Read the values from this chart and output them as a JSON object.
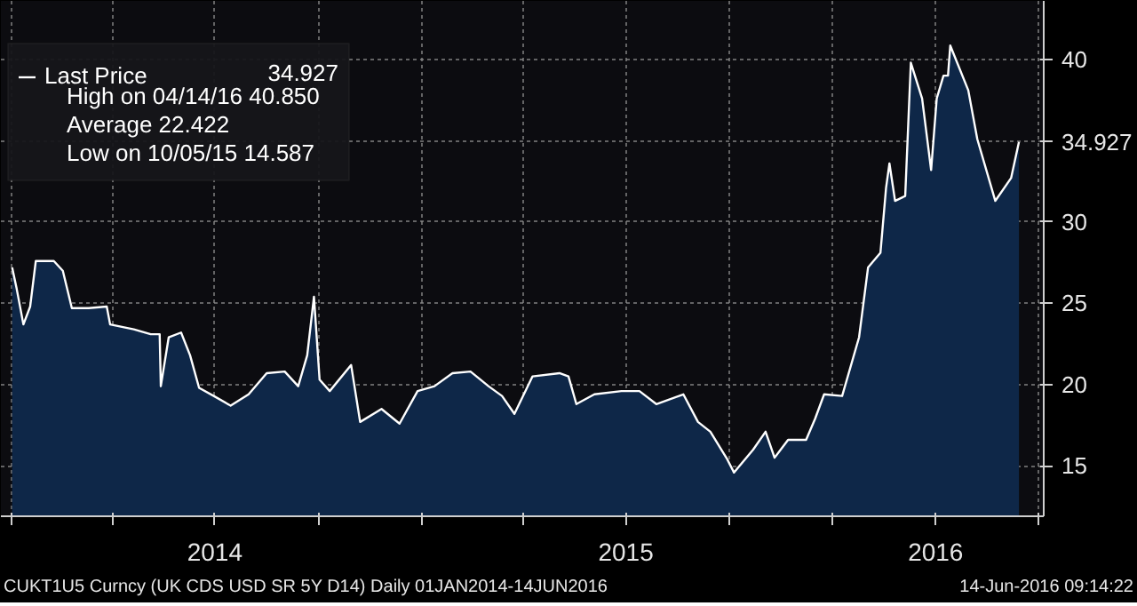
{
  "chart_data": {
    "type": "area",
    "x": [
      "2014-01-02",
      "2014-01-06",
      "2014-01-12",
      "2014-01-18",
      "2014-01-23",
      "2014-02-08",
      "2014-02-16",
      "2014-02-24",
      "2014-03-11",
      "2014-03-27",
      "2014-03-30",
      "2014-04-20",
      "2014-05-05",
      "2014-05-13",
      "2014-05-14",
      "2014-05-21",
      "2014-06-01",
      "2014-06-09",
      "2014-06-17",
      "2014-06-30",
      "2014-07-15",
      "2014-07-31",
      "2014-08-16",
      "2014-09-01",
      "2014-09-13",
      "2014-09-21",
      "2014-09-27",
      "2014-10-02",
      "2014-10-11",
      "2014-10-30",
      "2014-11-07",
      "2014-11-26",
      "2014-12-12",
      "2014-12-28",
      "2015-01-12",
      "2015-01-28",
      "2015-02-13",
      "2015-03-01",
      "2015-03-13",
      "2015-03-24",
      "2015-04-09",
      "2015-05-03",
      "2015-05-11",
      "2015-05-18",
      "2015-06-03",
      "2015-06-27",
      "2015-07-13",
      "2015-07-28",
      "2015-08-21",
      "2015-09-03",
      "2015-09-14",
      "2015-09-29",
      "2015-10-05",
      "2015-10-22",
      "2015-11-02",
      "2015-11-10",
      "2015-11-22",
      "2015-12-08",
      "2015-12-16",
      "2015-12-24",
      "2016-01-09",
      "2016-01-24",
      "2016-02-01",
      "2016-02-12",
      "2016-02-17",
      "2016-02-20",
      "2016-02-25",
      "2016-03-05",
      "2016-03-10",
      "2016-03-20",
      "2016-03-28",
      "2016-04-02",
      "2016-04-08",
      "2016-04-12",
      "2016-04-14",
      "2016-04-30",
      "2016-05-08",
      "2016-05-24",
      "2016-06-07",
      "2016-06-14"
    ],
    "series": [
      {
        "name": "Last Price",
        "color": "#ffffff",
        "values": [
          27.2,
          25.9,
          23.7,
          24.8,
          27.6,
          27.6,
          27.0,
          24.7,
          24.7,
          24.8,
          23.7,
          23.4,
          23.1,
          23.1,
          19.9,
          22.9,
          23.2,
          21.8,
          19.8,
          19.3,
          18.7,
          19.4,
          20.7,
          20.8,
          19.9,
          21.8,
          25.4,
          20.3,
          19.6,
          21.2,
          17.7,
          18.5,
          17.6,
          19.6,
          19.9,
          20.7,
          20.8,
          19.9,
          19.3,
          18.2,
          20.5,
          20.7,
          20.5,
          18.8,
          19.4,
          19.6,
          19.6,
          18.8,
          19.4,
          17.7,
          17.1,
          15.4,
          14.587,
          16.0,
          17.1,
          15.5,
          16.6,
          16.6,
          17.9,
          19.4,
          19.3,
          22.9,
          27.2,
          28.1,
          32.1,
          33.6,
          31.3,
          31.6,
          39.8,
          37.6,
          33.2,
          37.6,
          39.0,
          39.0,
          40.85,
          38.1,
          35.1,
          31.3,
          32.7,
          34.927
        ]
      }
    ],
    "xlim": [
      "2013-12-23",
      "2016-07-06"
    ],
    "xticks": [
      {
        "value": "2014-01-01",
        "label": null
      },
      {
        "value": "2014-04-01",
        "label": null
      },
      {
        "value": "2014-07-01",
        "label": "2014"
      },
      {
        "value": "2014-10-01",
        "label": null
      },
      {
        "value": "2015-01-01",
        "label": null
      },
      {
        "value": "2015-04-01",
        "label": null
      },
      {
        "value": "2015-07-01",
        "label": "2015"
      },
      {
        "value": "2015-10-01",
        "label": null
      },
      {
        "value": "2016-01-01",
        "label": null
      },
      {
        "value": "2016-04-01",
        "label": "2016"
      },
      {
        "value": "2016-07-01",
        "label": null
      }
    ],
    "ylim": [
      11.9,
      43.6
    ],
    "yticks": [
      15,
      20,
      25,
      30,
      {
        "value": 35,
        "label": null
      },
      40
    ],
    "grid": true,
    "legend": "top left",
    "annotations": [
      "34.927",
      "34.927",
      "High on 04/14/16 40.850",
      "Average 22.422",
      "Low on 10/05/15 14.587",
      "CUKT1U5 Curncy (UK CDS USD SR 5Y D14)  Daily 01JAN2014-14JUN2016",
      "14-Jun-2016 09:14:22"
    ]
  }
}
